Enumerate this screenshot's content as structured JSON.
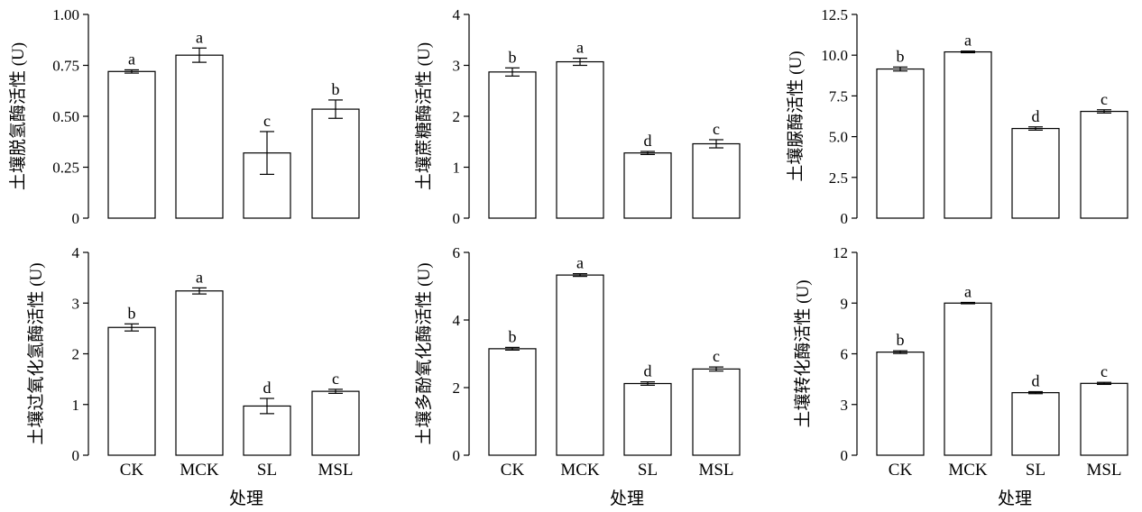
{
  "chart_data": [
    {
      "type": "bar",
      "ylabel": "土壤脱氢酶活性 (U)",
      "xlabel": "",
      "ylim": [
        0,
        1.0
      ],
      "yticks": [
        "0",
        "0.25",
        "0.50",
        "0.75",
        "1.00"
      ],
      "categories": [
        "CK",
        "MCK",
        "SL",
        "MSL"
      ],
      "values": [
        0.72,
        0.8,
        0.32,
        0.535
      ],
      "errors": [
        0.008,
        0.035,
        0.105,
        0.045
      ],
      "letters": [
        "a",
        "a",
        "c",
        "b"
      ]
    },
    {
      "type": "bar",
      "ylabel": "土壤蔗糖酶活性 (U)",
      "xlabel": "",
      "ylim": [
        0,
        4
      ],
      "yticks": [
        "0",
        "1",
        "2",
        "3",
        "4"
      ],
      "categories": [
        "CK",
        "MCK",
        "SL",
        "MSL"
      ],
      "values": [
        2.87,
        3.07,
        1.28,
        1.46
      ],
      "errors": [
        0.08,
        0.07,
        0.03,
        0.08
      ],
      "letters": [
        "b",
        "a",
        "d",
        "c"
      ]
    },
    {
      "type": "bar",
      "ylabel": "土壤脲酶活性 (U)",
      "xlabel": "",
      "ylim": [
        0,
        12.5
      ],
      "yticks": [
        "0",
        "2.5",
        "5.0",
        "7.5",
        "10.0",
        "12.5"
      ],
      "categories": [
        "CK",
        "MCK",
        "SL",
        "MSL"
      ],
      "values": [
        9.15,
        10.2,
        5.5,
        6.55
      ],
      "errors": [
        0.12,
        0.05,
        0.1,
        0.1
      ],
      "letters": [
        "b",
        "a",
        "d",
        "c"
      ]
    },
    {
      "type": "bar",
      "ylabel": "土壤过氧化氢酶活性 (U)",
      "xlabel": "",
      "ylim": [
        0,
        4
      ],
      "yticks": [
        "0",
        "1",
        "2",
        "3",
        "4"
      ],
      "categories": [
        "CK",
        "MCK",
        "SL",
        "MSL"
      ],
      "values": [
        2.52,
        3.24,
        0.97,
        1.26
      ],
      "errors": [
        0.07,
        0.06,
        0.15,
        0.04
      ],
      "letters": [
        "b",
        "a",
        "d",
        "c"
      ]
    },
    {
      "type": "bar",
      "ylabel": "土壤多酚氧化酶活性 (U)",
      "xlabel": "处理",
      "ylim": [
        0,
        6
      ],
      "yticks": [
        "0",
        "2",
        "4",
        "6"
      ],
      "categories": [
        "CK",
        "MCK",
        "SL",
        "MSL"
      ],
      "values": [
        3.15,
        5.33,
        2.12,
        2.55
      ],
      "errors": [
        0.04,
        0.04,
        0.05,
        0.06
      ],
      "letters": [
        "b",
        "a",
        "d",
        "c"
      ]
    },
    {
      "type": "bar",
      "ylabel": "土壤转化酶活性 (U)",
      "xlabel": "处理",
      "ylim": [
        0,
        12
      ],
      "yticks": [
        "0",
        "3",
        "6",
        "9",
        "12"
      ],
      "categories": [
        "CK",
        "MCK",
        "SL",
        "MSL"
      ],
      "values": [
        6.1,
        9.0,
        3.7,
        4.25
      ],
      "errors": [
        0.08,
        0.04,
        0.06,
        0.06
      ],
      "letters": [
        "b",
        "a",
        "d",
        "c"
      ]
    }
  ],
  "shared_xlabel": "处理"
}
